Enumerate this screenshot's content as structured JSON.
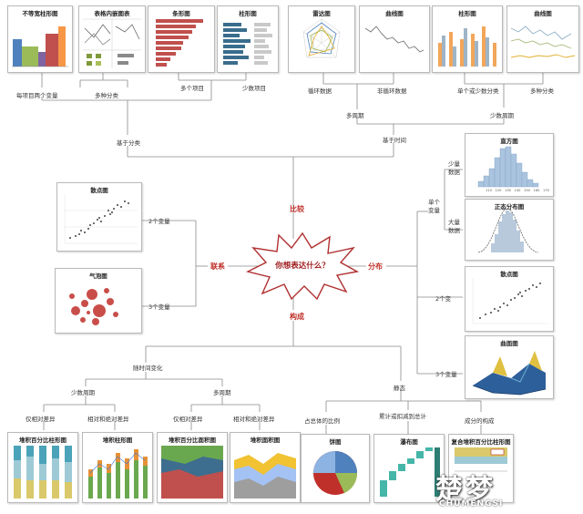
{
  "center": {
    "title": "你想表达什么？"
  },
  "branches": {
    "compare": "比较",
    "relation": "联系",
    "distribution": "分布",
    "composition": "构成"
  },
  "top_charts": [
    {
      "title": "不等宽柱形图"
    },
    {
      "title": "表格内嵌图表"
    },
    {
      "title": "条形图"
    },
    {
      "title": "柱形图"
    },
    {
      "title": "雷达图"
    },
    {
      "title": "曲线图"
    },
    {
      "title": "柱形图"
    },
    {
      "title": "曲线图"
    }
  ],
  "compare_labels": {
    "two_vars_per_item": "每项目两个变量",
    "multi_cat": "多种分类",
    "many_items": "多个项目",
    "few_items": "少数项目",
    "cyclic": "循环数据",
    "non_cyclic": "非循环数据",
    "single_few_cat": "单个或少数分类",
    "multi_cat2": "多种分类",
    "many_periods": "多周期",
    "few_periods": "少数周期",
    "by_category": "基于分类",
    "by_time": "基于时间"
  },
  "relation": {
    "scatter_title": "散点图",
    "bubble_title": "气泡图",
    "two_vars": "2个变量",
    "three_vars": "3个变量"
  },
  "distribution": {
    "single_var": "单个\n变量",
    "few_data": "少量\n数据",
    "many_data": "大量\n数据",
    "histogram_title": "直方图",
    "normal_title": "正态分布图",
    "scatter_title": "散点图",
    "surface_title": "曲面图",
    "two_vars": "2个变",
    "three_vars": "3个变量"
  },
  "composition": {
    "over_time": "随时间变化",
    "static": "静态",
    "few_periods": "少数周期",
    "many_periods": "多周期",
    "relative_only": "仅相对差异",
    "relative_absolute": "相对和绝对差异",
    "relative_only2": "仅相对差异",
    "relative_absolute2": "相对和绝对差异",
    "share_total": "占总体的比例",
    "accumulate": "累计或扣减到总计",
    "components": "成分的构成",
    "bottom_titles": [
      "堆积百分比柱形图",
      "堆积柱形图",
      "堆积百分比面积图",
      "堆积面积图",
      "饼图",
      "瀑布图",
      "复合堆积百分比柱形图"
    ]
  },
  "histogram_ticks": [
    "110",
    "120",
    "130",
    "140",
    "150",
    "160",
    "170"
  ],
  "watermark": {
    "main": "楚梦",
    "sub": "CHUMENGSI"
  },
  "colors": {
    "accent": "#c0302a"
  }
}
